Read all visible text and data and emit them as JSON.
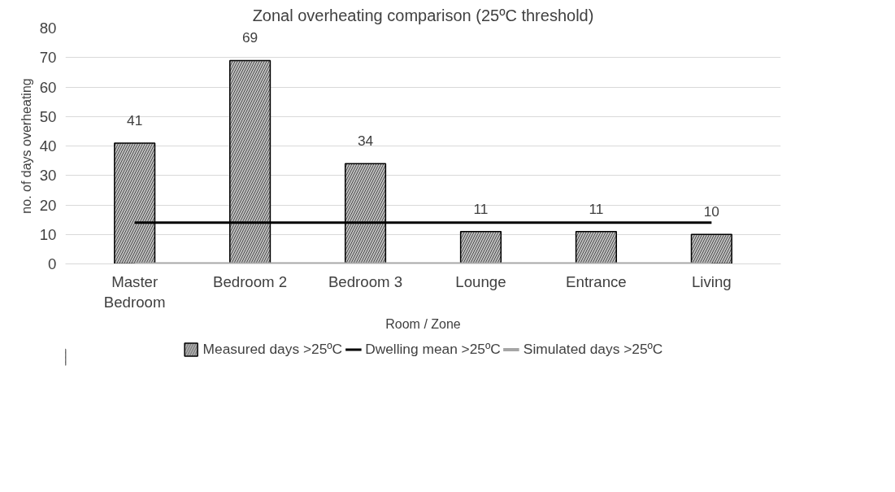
{
  "chart_data": {
    "type": "bar",
    "title": "Zonal overheating comparison (25ºC threshold)",
    "xlabel": "Room / Zone",
    "ylabel": "no. of days overheating",
    "categories": [
      "Master Bedroom",
      "Bedroom 2",
      "Bedroom 3",
      "Lounge",
      "Entrance",
      "Living"
    ],
    "series": [
      {
        "name": "Measured days >25ºC",
        "color": "#bfbfbf",
        "values": [
          41,
          69,
          34,
          11,
          11,
          10
        ],
        "value_labels": [
          "41",
          "69",
          "34",
          "11",
          "11",
          "10"
        ]
      },
      {
        "name": "Dwelling mean >25ºC",
        "type": "line",
        "color": "#000000",
        "values": [
          14,
          14,
          14,
          14,
          14,
          14
        ]
      },
      {
        "name": "Simulated days >25ºC",
        "type": "line",
        "color": "#a6a6a6",
        "values": [
          0,
          0,
          0,
          0,
          0,
          0
        ]
      }
    ],
    "ylim": [
      0,
      80
    ],
    "yticks": [
      0,
      10,
      20,
      30,
      40,
      50,
      60,
      70,
      80
    ],
    "grid": "y",
    "legend": "bottom"
  }
}
